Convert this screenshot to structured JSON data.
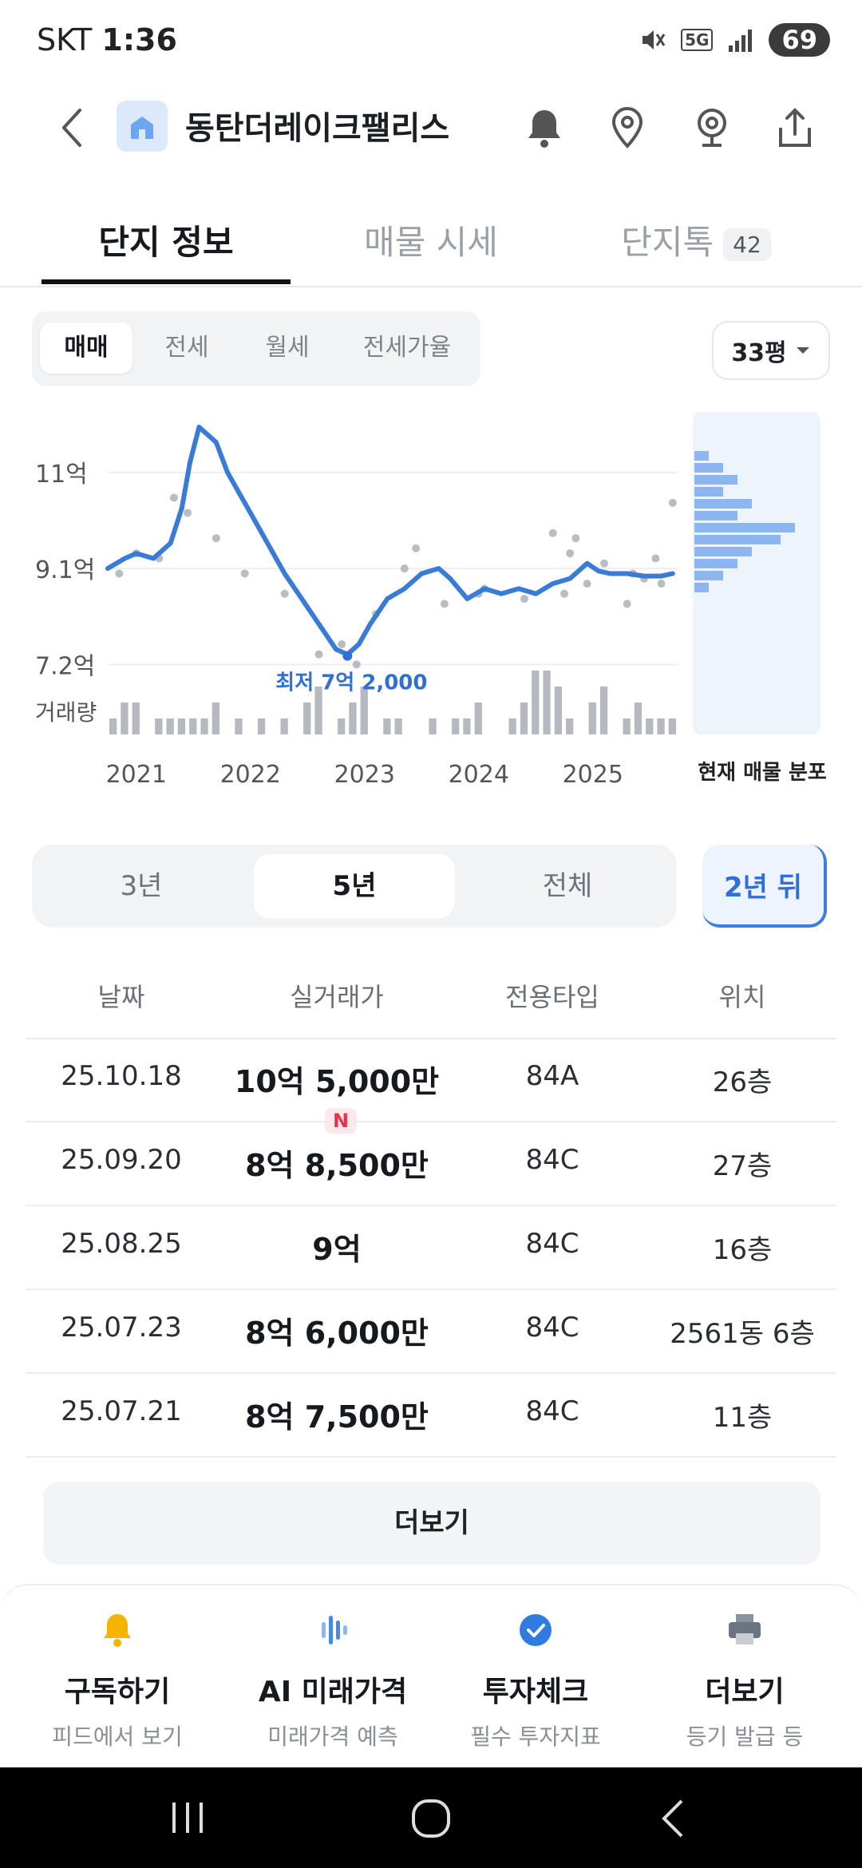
{
  "status_bar": {
    "carrier": "SKT",
    "time": "1:36",
    "network": "5G",
    "battery": "69"
  },
  "header": {
    "title": "동탄더레이크팰리스"
  },
  "tabs": [
    {
      "label": "단지 정보"
    },
    {
      "label": "매물 시세"
    },
    {
      "label": "단지톡",
      "count": "42"
    }
  ],
  "trade_types": [
    "매매",
    "전세",
    "월세",
    "전세가율"
  ],
  "area_select": "33평",
  "chart_data": {
    "type": "line",
    "y_tick_labels": [
      "11억",
      "9.1억",
      "7.2억"
    ],
    "x_tick_labels": [
      "2021",
      "2022",
      "2023",
      "2024",
      "2025"
    ],
    "volume_label": "거래량",
    "distribution_label": "현재 매물 분포",
    "min_annotation": "최저 7억 2,000",
    "ylim": [
      7.0,
      12.2
    ],
    "xlim": [
      2020.9,
      2025.9
    ],
    "series": [
      {
        "x": [
          2020.9,
          2021.05,
          2021.15,
          2021.3,
          2021.45,
          2021.55,
          2021.62,
          2021.7,
          2021.85,
          2021.95,
          2022.05,
          2022.15,
          2022.3,
          2022.45,
          2022.6,
          2022.75,
          2022.9,
          2023.0,
          2023.1,
          2023.2,
          2023.35,
          2023.5,
          2023.65,
          2023.8,
          2023.9,
          2024.05,
          2024.2,
          2024.35,
          2024.5,
          2024.65,
          2024.8,
          2024.95,
          2025.1,
          2025.2,
          2025.3,
          2025.45,
          2025.6,
          2025.75,
          2025.85
        ],
        "y": [
          9.1,
          9.3,
          9.4,
          9.3,
          9.6,
          10.3,
          11.2,
          11.9,
          11.6,
          11.0,
          10.6,
          10.2,
          9.6,
          9.0,
          8.5,
          8.0,
          7.5,
          7.4,
          7.6,
          8.0,
          8.5,
          8.7,
          9.0,
          9.1,
          8.9,
          8.5,
          8.7,
          8.6,
          8.7,
          8.6,
          8.8,
          8.9,
          9.2,
          9.05,
          9.0,
          9.0,
          8.95,
          8.95,
          9.0
        ]
      }
    ],
    "scatter_points": [
      [
        2021.0,
        9.0
      ],
      [
        2021.15,
        9.4
      ],
      [
        2021.35,
        9.3
      ],
      [
        2021.48,
        10.5
      ],
      [
        2021.6,
        10.2
      ],
      [
        2021.85,
        9.7
      ],
      [
        2022.1,
        9.0
      ],
      [
        2022.45,
        8.6
      ],
      [
        2022.75,
        7.4
      ],
      [
        2022.95,
        7.6
      ],
      [
        2023.08,
        7.2
      ],
      [
        2023.25,
        8.2
      ],
      [
        2023.5,
        9.1
      ],
      [
        2023.6,
        9.5
      ],
      [
        2023.85,
        8.4
      ],
      [
        2024.15,
        8.6
      ],
      [
        2024.2,
        8.7
      ],
      [
        2024.55,
        8.5
      ],
      [
        2024.8,
        9.8
      ],
      [
        2024.9,
        8.6
      ],
      [
        2024.95,
        9.4
      ],
      [
        2025.0,
        9.7
      ],
      [
        2025.1,
        8.8
      ],
      [
        2025.25,
        9.2
      ],
      [
        2025.45,
        8.4
      ],
      [
        2025.5,
        9.0
      ],
      [
        2025.6,
        8.9
      ],
      [
        2025.7,
        9.3
      ],
      [
        2025.75,
        8.8
      ],
      [
        2025.85,
        10.4
      ]
    ],
    "volume_bars": [
      1,
      2,
      2,
      0,
      1,
      1,
      1,
      1,
      1,
      2,
      0,
      1,
      0,
      1,
      0,
      1,
      0,
      2,
      3,
      0,
      1,
      2,
      3,
      0,
      1,
      1,
      0,
      0,
      1,
      0,
      1,
      1,
      2,
      0,
      0,
      1,
      2,
      4,
      4,
      3,
      1,
      0,
      2,
      3,
      0,
      1,
      2,
      1,
      1,
      1
    ],
    "distribution_bars": [
      1,
      2,
      3,
      2,
      4,
      3,
      7,
      6,
      4,
      3,
      2,
      1
    ]
  },
  "ranges": [
    "3년",
    "5년",
    "전체"
  ],
  "future_button": "2년 뒤",
  "table": {
    "headers": [
      "날짜",
      "실거래가",
      "전용타입",
      "위치"
    ],
    "new_badge": "N",
    "rows": [
      {
        "date": "25.10.18",
        "price": "10억 5,000만",
        "type": "84A",
        "floor": "26층",
        "is_new": true
      },
      {
        "date": "25.09.20",
        "price": "8억 8,500만",
        "type": "84C",
        "floor": "27층"
      },
      {
        "date": "25.08.25",
        "price": "9억",
        "type": "84C",
        "floor": "16층"
      },
      {
        "date": "25.07.23",
        "price": "8억 6,000만",
        "type": "84C",
        "floor": "2561동 6층"
      },
      {
        "date": "25.07.21",
        "price": "8억 7,500만",
        "type": "84C",
        "floor": "11층"
      }
    ],
    "more_label": "더보기"
  },
  "actions": [
    {
      "title": "구독하기",
      "sub": "피드에서 보기",
      "icon": "bell-icon",
      "color": "#f5b400"
    },
    {
      "title": "AI 미래가격",
      "sub": "미래가격 예측",
      "icon": "ai-bars-icon",
      "color": "#4a86e8"
    },
    {
      "title": "투자체크",
      "sub": "필수 투자지표",
      "icon": "check-circle-icon",
      "color": "#2f7be0"
    },
    {
      "title": "더보기",
      "sub": "등기 발급 등",
      "icon": "printer-icon",
      "color": "#6b7480"
    }
  ],
  "colors": {
    "accent": "#3b7fde",
    "line": "#3a7bd5",
    "new_badge": "#e5334b"
  }
}
